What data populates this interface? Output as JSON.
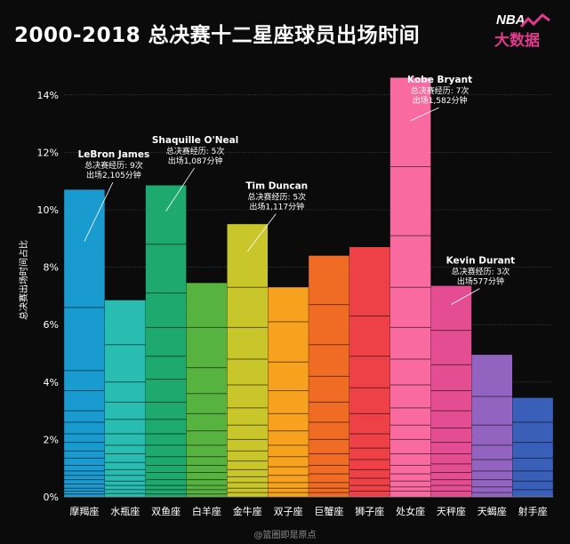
{
  "header": {
    "title": "2000-2018 总决赛十二星座球员出场时间",
    "logo_top": "NBA",
    "logo_bottom": "大数据"
  },
  "footer": {
    "watermark": "@篮圈即是原点"
  },
  "colors": {
    "background": "#0b0b0b",
    "gridline": "#5a5a5a",
    "axis_text": "#ffffff",
    "annotation_line": "#ffffff"
  },
  "chart_data": {
    "type": "bar",
    "title": "2000-2018 总决赛十二星座球员出场时间",
    "xlabel": "",
    "ylabel": "总决赛出场时间占比",
    "ylim": [
      0,
      15
    ],
    "yticks": [
      0,
      2,
      4,
      6,
      8,
      10,
      12,
      14
    ],
    "ytick_labels": [
      "0%",
      "2%",
      "4%",
      "6%",
      "8%",
      "10%",
      "12%",
      "14%"
    ],
    "grid": true,
    "stacked_segments": true,
    "categories": [
      "摩羯座",
      "水瓶座",
      "双鱼座",
      "白羊座",
      "金牛座",
      "双子座",
      "巨蟹座",
      "狮子座",
      "处女座",
      "天秤座",
      "天蝎座",
      "射手座"
    ],
    "values": [
      10.7,
      6.85,
      10.85,
      7.45,
      9.5,
      7.3,
      8.4,
      8.7,
      14.6,
      7.35,
      4.95,
      3.45
    ],
    "bar_colors": [
      "#1a9bd0",
      "#29bcb1",
      "#1eaa6e",
      "#57b33f",
      "#c8c62a",
      "#f7a21f",
      "#f06b23",
      "#ee4147",
      "#f86aa0",
      "#e44d92",
      "#9263bf",
      "#3a5fb9"
    ],
    "segment_boundaries": [
      [
        6.6,
        4.4,
        3.7,
        3.0,
        2.6,
        2.2,
        1.9,
        1.6,
        1.35,
        1.1,
        0.9,
        0.75,
        0.6,
        0.45,
        0.3,
        0.2,
        0.1
      ],
      [
        5.3,
        4.0,
        3.3,
        2.7,
        2.2,
        1.8,
        1.5,
        1.2,
        0.95,
        0.75,
        0.55,
        0.4,
        0.25,
        0.12
      ],
      [
        8.8,
        7.1,
        5.9,
        4.9,
        4.1,
        3.3,
        2.7,
        2.2,
        1.8,
        1.4,
        1.1,
        0.85,
        0.6,
        0.4,
        0.25,
        0.1
      ],
      [
        5.9,
        4.5,
        3.6,
        2.9,
        2.3,
        1.8,
        1.4,
        1.1,
        0.85,
        0.6,
        0.4,
        0.25,
        0.1
      ],
      [
        7.3,
        5.9,
        4.8,
        3.9,
        3.1,
        2.5,
        2.0,
        1.6,
        1.25,
        0.95,
        0.7,
        0.5,
        0.3,
        0.15
      ],
      [
        6.1,
        4.7,
        3.7,
        2.9,
        2.3,
        1.8,
        1.4,
        1.05,
        0.75,
        0.5,
        0.3,
        0.15
      ],
      [
        6.7,
        5.3,
        4.2,
        3.3,
        2.6,
        2.0,
        1.5,
        1.1,
        0.8,
        0.5,
        0.3,
        0.15
      ],
      [
        6.3,
        4.9,
        3.8,
        2.9,
        2.2,
        1.7,
        1.3,
        0.95,
        0.65,
        0.4,
        0.2
      ],
      [
        11.5,
        9.1,
        7.3,
        5.9,
        4.8,
        3.9,
        3.1,
        2.5,
        2.0,
        1.5,
        1.1,
        0.8,
        0.55,
        0.35,
        0.2
      ],
      [
        5.8,
        4.6,
        3.7,
        3.0,
        2.4,
        1.9,
        1.5,
        1.15,
        0.85,
        0.6,
        0.4,
        0.2
      ],
      [
        3.5,
        2.5,
        1.8,
        1.3,
        0.9,
        0.6,
        0.35,
        0.15
      ],
      [
        2.6,
        1.9,
        1.35,
        0.9,
        0.55,
        0.25
      ]
    ],
    "annotations": [
      {
        "category": "摩羯座",
        "y": 8.9,
        "label_y": 11.7,
        "name": "LeBron James",
        "line1": "总决赛经历: 9次",
        "line2": "出场2,105分钟"
      },
      {
        "category": "双鱼座",
        "y": 9.95,
        "label_y": 12.2,
        "name": "Shaquille O'Neal",
        "line1": "总决赛经历: 5次",
        "line2": "出场1,087分钟"
      },
      {
        "category": "金牛座",
        "y": 8.55,
        "label_y": 10.6,
        "name": "Tim Duncan",
        "line1": "总决赛经历: 5次",
        "line2": "出场1,117分钟"
      },
      {
        "category": "处女座",
        "y": 13.1,
        "label_y": 14.3,
        "name": "Kobe Bryant",
        "line1": "总决赛经历: 7次",
        "line2": "出场1,582分钟"
      },
      {
        "category": "天秤座",
        "y": 6.7,
        "label_y": 8.0,
        "name": "Kevin Durant",
        "line1": "总决赛经历: 3次",
        "line2": "出场577分钟"
      }
    ]
  }
}
